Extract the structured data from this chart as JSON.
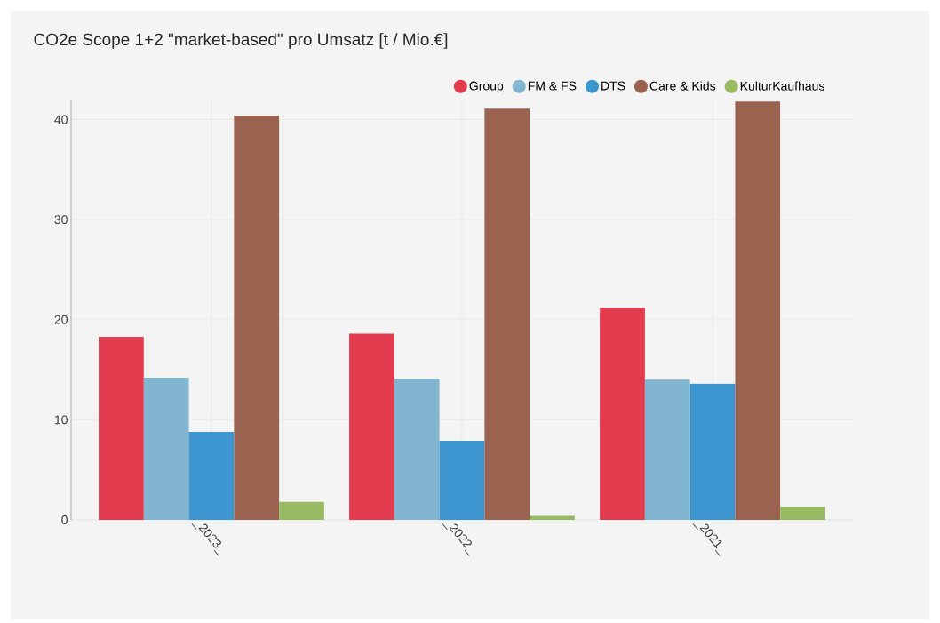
{
  "chart_data": {
    "type": "bar",
    "title": "CO2e Scope 1+2 \"market-based\" pro Umsatz [t / Mio.€]",
    "categories": [
      "_2023_",
      "_2022_",
      "_2021_"
    ],
    "series": [
      {
        "name": "Group",
        "color": "#e33c4e",
        "values": [
          18.3,
          18.6,
          21.2
        ]
      },
      {
        "name": "FM & FS",
        "color": "#82b5cf",
        "values": [
          14.2,
          14.1,
          14.0
        ]
      },
      {
        "name": "DTS",
        "color": "#3d96d0",
        "values": [
          8.8,
          7.9,
          13.6
        ]
      },
      {
        "name": "Care & Kids",
        "color": "#9a6350",
        "values": [
          40.4,
          41.1,
          41.8
        ]
      },
      {
        "name": "KulturKaufhaus",
        "color": "#98ba62",
        "values": [
          1.8,
          0.4,
          1.3
        ]
      }
    ],
    "ylim": [
      0,
      42
    ],
    "yticks": [
      0,
      10,
      20,
      30,
      40
    ],
    "grid": true,
    "legend": "top right"
  }
}
